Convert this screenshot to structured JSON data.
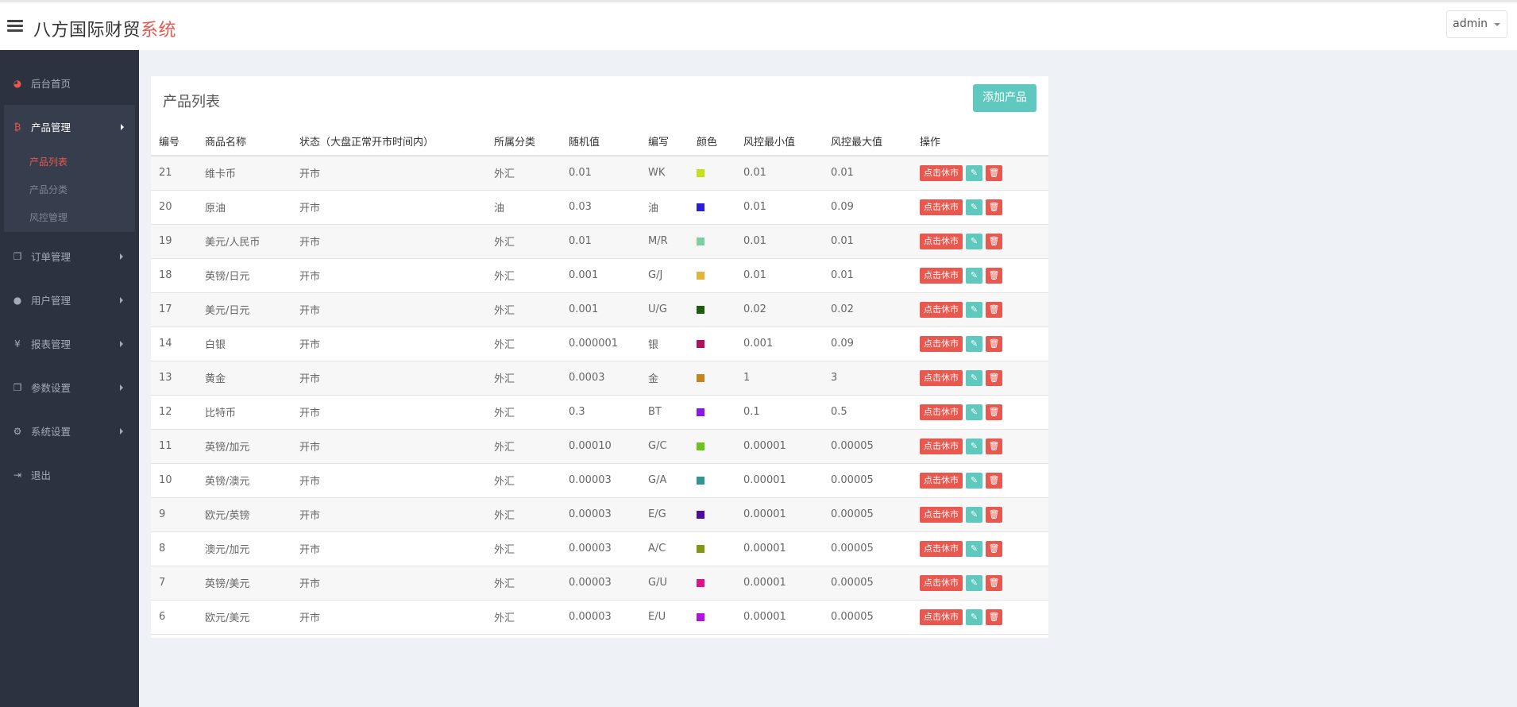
{
  "header": {
    "brand_main": "八方国际财贸",
    "brand_accent": "系统",
    "user": "admin"
  },
  "sidebar": {
    "items": [
      {
        "label": "后台首页",
        "icon": "dashboard-icon"
      },
      {
        "label": "产品管理",
        "icon": "bitcoin-icon"
      },
      {
        "label": "订单管理",
        "icon": "copy-icon"
      },
      {
        "label": "用户管理",
        "icon": "user-icon"
      },
      {
        "label": "报表管理",
        "icon": "yen-icon"
      },
      {
        "label": "参数设置",
        "icon": "copy-icon"
      },
      {
        "label": "系统设置",
        "icon": "gears-icon"
      },
      {
        "label": "退出",
        "icon": "sign-out-icon"
      }
    ],
    "sub_items": [
      "产品列表",
      "产品分类",
      "风控管理"
    ]
  },
  "main": {
    "title": "产品列表",
    "add_button": "添加产品",
    "columns": [
      "编号",
      "商品名称",
      "状态（大盘正常开市时间内）",
      "所属分类",
      "随机值",
      "编写",
      "颜色",
      "风控最小值",
      "风控最大值",
      "操作"
    ],
    "close_label": "点击休市",
    "rows": [
      {
        "id": "21",
        "name": "维卡币",
        "status": "开市",
        "category": "外汇",
        "random": "0.01",
        "code": "WK",
        "color": "#c5e01a",
        "min": "0.01",
        "max": "0.01"
      },
      {
        "id": "20",
        "name": "原油",
        "status": "开市",
        "category": "油",
        "random": "0.03",
        "code": "油",
        "color": "#2a1fd6",
        "min": "0.01",
        "max": "0.09"
      },
      {
        "id": "19",
        "name": "美元/人民币",
        "status": "开市",
        "category": "外汇",
        "random": "0.01",
        "code": "M/R",
        "color": "#7fcfa6",
        "min": "0.01",
        "max": "0.01"
      },
      {
        "id": "18",
        "name": "英镑/日元",
        "status": "开市",
        "category": "外汇",
        "random": "0.001",
        "code": "G/J",
        "color": "#e2b43a",
        "min": "0.01",
        "max": "0.01"
      },
      {
        "id": "17",
        "name": "美元/日元",
        "status": "开市",
        "category": "外汇",
        "random": "0.001",
        "code": "U/G",
        "color": "#1f5a0f",
        "min": "0.02",
        "max": "0.02"
      },
      {
        "id": "14",
        "name": "白银",
        "status": "开市",
        "category": "外汇",
        "random": "0.000001",
        "code": "银",
        "color": "#b0125a",
        "min": "0.001",
        "max": "0.09"
      },
      {
        "id": "13",
        "name": "黄金",
        "status": "开市",
        "category": "外汇",
        "random": "0.0003",
        "code": "金",
        "color": "#c4861c",
        "min": "1",
        "max": "3"
      },
      {
        "id": "12",
        "name": "比特币",
        "status": "开市",
        "category": "外汇",
        "random": "0.3",
        "code": "BT",
        "color": "#8a18e6",
        "min": "0.1",
        "max": "0.5"
      },
      {
        "id": "11",
        "name": "英镑/加元",
        "status": "开市",
        "category": "外汇",
        "random": "0.00010",
        "code": "G/C",
        "color": "#6cc41a",
        "min": "0.00001",
        "max": "0.00005"
      },
      {
        "id": "10",
        "name": "英镑/澳元",
        "status": "开市",
        "category": "外汇",
        "random": "0.00003",
        "code": "G/A",
        "color": "#2f9595",
        "min": "0.00001",
        "max": "0.00005"
      },
      {
        "id": "9",
        "name": "欧元/英镑",
        "status": "开市",
        "category": "外汇",
        "random": "0.00003",
        "code": "E/G",
        "color": "#4a0f9e",
        "min": "0.00001",
        "max": "0.00005"
      },
      {
        "id": "8",
        "name": "澳元/加元",
        "status": "开市",
        "category": "外汇",
        "random": "0.00003",
        "code": "A/C",
        "color": "#7f9a12",
        "min": "0.00001",
        "max": "0.00005"
      },
      {
        "id": "7",
        "name": "英镑/美元",
        "status": "开市",
        "category": "外汇",
        "random": "0.00003",
        "code": "G/U",
        "color": "#e0128a",
        "min": "0.00001",
        "max": "0.00005"
      },
      {
        "id": "6",
        "name": "欧元/美元",
        "status": "开市",
        "category": "外汇",
        "random": "0.00003",
        "code": "E/U",
        "color": "#b412e0",
        "min": "0.00001",
        "max": "0.00005"
      }
    ]
  }
}
